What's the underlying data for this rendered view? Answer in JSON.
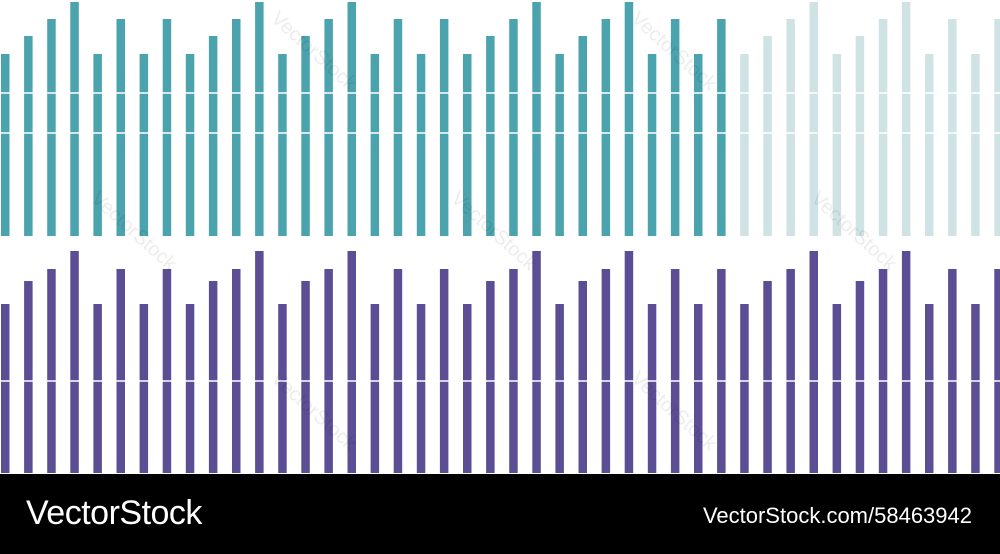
{
  "colors": {
    "teal": "#4aa3ad",
    "teal_faded": "#cfe3e4",
    "purple": "#5b4e94",
    "background": "#ffffff",
    "footer_bg": "#000000",
    "footer_text": "#ffffff"
  },
  "watermark": {
    "text": "VectorStock"
  },
  "footer": {
    "brand": "VectorStock",
    "image_ref": "VectorStock.com/58463942"
  }
}
